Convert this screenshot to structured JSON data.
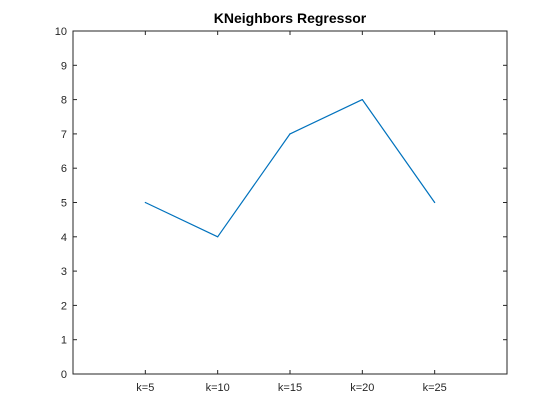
{
  "chart_data": {
    "type": "line",
    "title": "KNeighbors Regressor",
    "xlabel": "",
    "ylabel": "",
    "categories": [
      "k=5",
      "k=10",
      "k=15",
      "k=20",
      "k=25"
    ],
    "xlim": [
      0,
      6
    ],
    "ylim": [
      0,
      10
    ],
    "yticks": [
      0,
      1,
      2,
      3,
      4,
      5,
      6,
      7,
      8,
      9,
      10
    ],
    "grid": false,
    "legend": "none",
    "series": [
      {
        "values": [
          5,
          4,
          7,
          8,
          5
        ],
        "color": "#0072BD"
      }
    ]
  }
}
